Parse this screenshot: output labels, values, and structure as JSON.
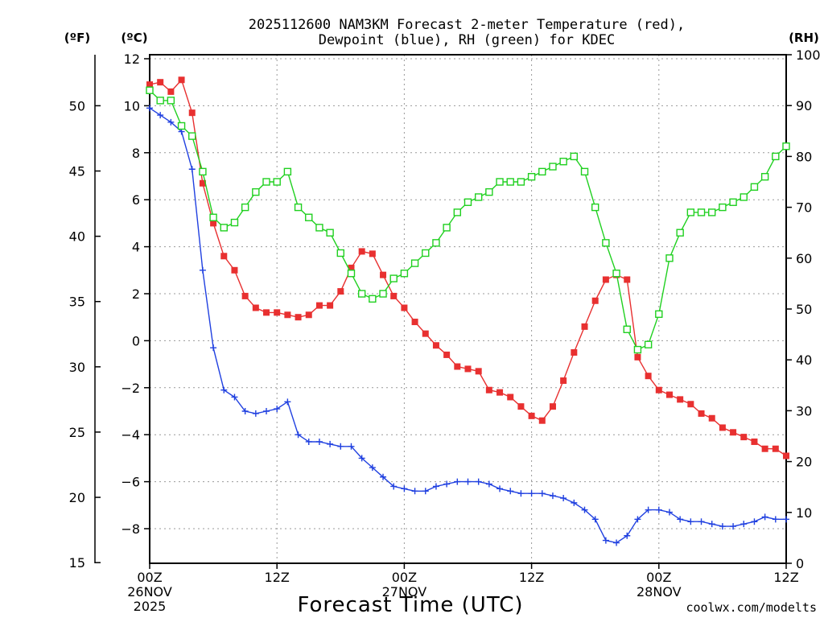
{
  "title_line1": "2025112600 NAM3KM Forecast 2-meter Temperature (red),",
  "title_line2": "Dewpoint (blue), RH (green) for KDEC",
  "units": {
    "fahrenheit": "(ºF)",
    "celsius": "(ºC)",
    "rh": "(RH)"
  },
  "xlabel": "Forecast Time (UTC)",
  "watermark": "coolwx.com/modelts",
  "colors": {
    "temperature": "#e83030",
    "dewpoint": "#2040e0",
    "rh": "#20d020",
    "watermark": "#e03030"
  },
  "chart_data": {
    "type": "line",
    "x_hours": [
      0,
      1,
      2,
      3,
      4,
      5,
      6,
      7,
      8,
      9,
      10,
      11,
      12,
      13,
      14,
      15,
      16,
      17,
      18,
      19,
      20,
      21,
      22,
      23,
      24,
      25,
      26,
      27,
      28,
      29,
      30,
      31,
      32,
      33,
      34,
      35,
      36,
      37,
      38,
      39,
      40,
      41,
      42,
      43,
      44,
      45,
      46,
      47,
      48,
      49,
      50,
      51,
      52,
      53,
      54,
      55,
      56,
      57,
      58,
      59,
      60
    ],
    "x_range": [
      0,
      60
    ],
    "x_ticks": [
      {
        "hour": 0,
        "label": "00Z",
        "date": "26NOV",
        "year": "2025"
      },
      {
        "hour": 12,
        "label": "12Z",
        "date": "",
        "year": ""
      },
      {
        "hour": 24,
        "label": "00Z",
        "date": "27NOV",
        "year": ""
      },
      {
        "hour": 36,
        "label": "12Z",
        "date": "",
        "year": ""
      },
      {
        "hour": 48,
        "label": "00Z",
        "date": "28NOV",
        "year": ""
      },
      {
        "hour": 60,
        "label": "12Z",
        "date": "",
        "year": ""
      }
    ],
    "celsius_range": [
      -9.5,
      12.2
    ],
    "celsius_ticks": [
      "12",
      "10",
      "8",
      "6",
      "4",
      "2",
      "0",
      "−2",
      "−4",
      "−6",
      "−8"
    ],
    "celsius_tick_values": [
      12,
      10,
      8,
      6,
      4,
      2,
      0,
      -2,
      -4,
      -6,
      -8
    ],
    "fahrenheit_ticks": [
      "50",
      "45",
      "40",
      "35",
      "30",
      "25",
      "20",
      "15"
    ],
    "fahrenheit_tick_values": [
      50,
      45,
      40,
      35,
      30,
      25,
      20,
      15
    ],
    "rh_range": [
      0,
      100
    ],
    "rh_ticks": [
      "100",
      "90",
      "80",
      "70",
      "60",
      "50",
      "40",
      "30",
      "20",
      "10",
      "0"
    ],
    "rh_tick_values": [
      100,
      90,
      80,
      70,
      60,
      50,
      40,
      30,
      20,
      10,
      0
    ],
    "series": [
      {
        "name": "Temperature (°C)",
        "axis": "celsius",
        "marker": "filled-square",
        "values": [
          10.9,
          11.0,
          10.6,
          11.1,
          9.7,
          6.7,
          5.0,
          3.6,
          3.0,
          1.9,
          1.4,
          1.2,
          1.2,
          1.1,
          1.0,
          1.1,
          1.5,
          1.5,
          2.1,
          3.1,
          3.8,
          3.7,
          2.8,
          1.9,
          1.4,
          0.8,
          0.3,
          -0.2,
          -0.6,
          -1.1,
          -1.2,
          -1.3,
          -2.1,
          -2.2,
          -2.4,
          -2.8,
          -3.2,
          -3.4,
          -2.8,
          -1.7,
          -0.5,
          0.6,
          1.7,
          2.6,
          2.8,
          2.6,
          -0.7,
          -1.5,
          -2.1,
          -2.3,
          -2.5,
          -2.7,
          -3.1,
          -3.3,
          -3.7,
          -3.9,
          -4.1,
          -4.3,
          -4.6,
          -4.6,
          -4.9
        ]
      },
      {
        "name": "Dewpoint (°C)",
        "axis": "celsius",
        "marker": "plus",
        "values": [
          9.9,
          9.6,
          9.3,
          8.9,
          7.3,
          3.0,
          -0.3,
          -2.1,
          -2.4,
          -3.0,
          -3.1,
          -3.0,
          -2.9,
          -2.6,
          -4.0,
          -4.3,
          -4.3,
          -4.4,
          -4.5,
          -4.5,
          -5.0,
          -5.4,
          -5.8,
          -6.2,
          -6.3,
          -6.4,
          -6.4,
          -6.2,
          -6.1,
          -6.0,
          -6.0,
          -6.0,
          -6.1,
          -6.3,
          -6.4,
          -6.5,
          -6.5,
          -6.5,
          -6.6,
          -6.7,
          -6.9,
          -7.2,
          -7.6,
          -8.5,
          -8.6,
          -8.3,
          -7.6,
          -7.2,
          -7.2,
          -7.3,
          -7.6,
          -7.7,
          -7.7,
          -7.8,
          -7.9,
          -7.9,
          -7.8,
          -7.7,
          -7.5,
          -7.6,
          -7.6
        ]
      },
      {
        "name": "RH (%)",
        "axis": "rh",
        "marker": "open-square",
        "values": [
          93,
          91,
          91,
          86,
          84,
          77,
          68,
          66,
          67,
          70,
          73,
          75,
          75,
          77,
          70,
          68,
          66,
          65,
          61,
          57,
          53,
          52,
          53,
          56,
          57,
          59,
          61,
          63,
          66,
          69,
          71,
          72,
          73,
          75,
          75,
          75,
          76,
          77,
          78,
          79,
          80,
          77,
          70,
          63,
          57,
          46,
          42,
          43,
          49,
          60,
          65,
          69,
          69,
          69,
          70,
          71,
          72,
          74,
          76,
          80,
          82
        ]
      }
    ]
  }
}
